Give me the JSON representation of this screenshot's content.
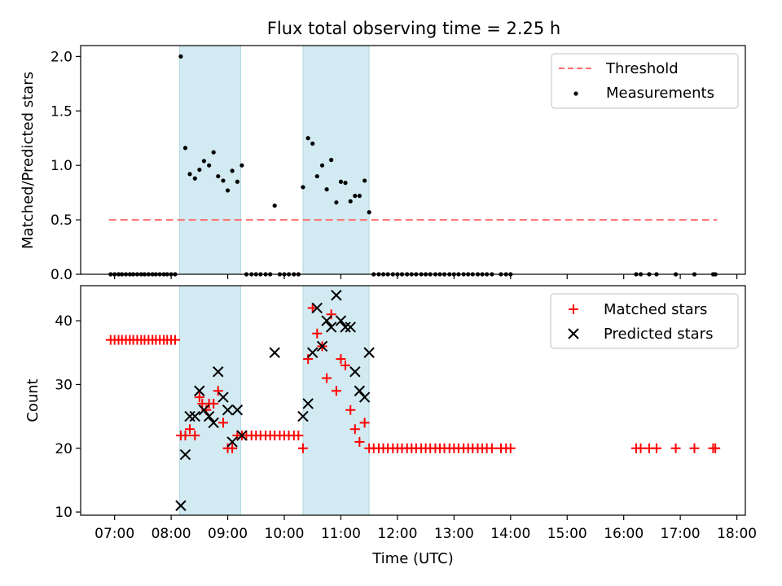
{
  "figure_title": "Flux total observing time = 2.25 h",
  "xlabel": "Time (UTC)",
  "x_ticks": [
    "07:00",
    "08:00",
    "09:00",
    "10:00",
    "11:00",
    "12:00",
    "13:00",
    "14:00",
    "15:00",
    "16:00",
    "17:00",
    "18:00"
  ],
  "colors": {
    "threshold": "#ff6b6b",
    "matched": "#ff0000",
    "predicted": "#000000",
    "span": "#add8e6"
  },
  "chart_data": [
    {
      "type": "scatter",
      "title": "Flux total observing time = 2.25 h",
      "xlabel": "",
      "ylabel": "Matched/Predicted stars",
      "x_unit": "hours UTC",
      "xlim": [
        6.4,
        18.15
      ],
      "ylim": [
        0,
        2.1
      ],
      "y_ticks": [
        "0.0",
        "0.5",
        "1.0",
        "1.5",
        "2.0"
      ],
      "grid": false,
      "legend": {
        "placement": "top-right",
        "entries": [
          "Threshold",
          "Measurements"
        ]
      },
      "observing_windows": [
        [
          8.15,
          9.23
        ],
        [
          10.33,
          11.5
        ]
      ],
      "threshold": {
        "name": "Threshold",
        "y": 0.5,
        "x_range": [
          6.9,
          17.65
        ]
      },
      "series": [
        {
          "name": "Measurements",
          "points": [
            [
              6.93,
              0
            ],
            [
              7.0,
              0
            ],
            [
              7.07,
              0
            ],
            [
              7.13,
              0
            ],
            [
              7.2,
              0
            ],
            [
              7.27,
              0
            ],
            [
              7.33,
              0
            ],
            [
              7.4,
              0
            ],
            [
              7.47,
              0
            ],
            [
              7.53,
              0
            ],
            [
              7.6,
              0
            ],
            [
              7.67,
              0
            ],
            [
              7.73,
              0
            ],
            [
              7.8,
              0
            ],
            [
              7.87,
              0
            ],
            [
              7.93,
              0
            ],
            [
              8.0,
              0
            ],
            [
              8.07,
              0
            ],
            [
              8.17,
              2.0
            ],
            [
              8.25,
              1.16
            ],
            [
              8.33,
              0.92
            ],
            [
              8.42,
              0.88
            ],
            [
              8.5,
              0.96
            ],
            [
              8.58,
              1.04
            ],
            [
              8.67,
              1.0
            ],
            [
              8.75,
              1.12
            ],
            [
              8.83,
              0.9
            ],
            [
              8.92,
              0.86
            ],
            [
              9.0,
              0.77
            ],
            [
              9.08,
              0.95
            ],
            [
              9.17,
              0.85
            ],
            [
              9.25,
              1.0
            ],
            [
              9.33,
              0
            ],
            [
              9.42,
              0
            ],
            [
              9.5,
              0
            ],
            [
              9.58,
              0
            ],
            [
              9.67,
              0
            ],
            [
              9.75,
              0
            ],
            [
              9.83,
              0.63
            ],
            [
              9.92,
              0
            ],
            [
              10.0,
              0
            ],
            [
              10.08,
              0
            ],
            [
              10.17,
              0
            ],
            [
              10.25,
              0
            ],
            [
              10.33,
              0.8
            ],
            [
              10.42,
              1.25
            ],
            [
              10.5,
              1.2
            ],
            [
              10.58,
              0.9
            ],
            [
              10.67,
              1.0
            ],
            [
              10.75,
              0.78
            ],
            [
              10.83,
              1.05
            ],
            [
              10.92,
              0.66
            ],
            [
              11.0,
              0.85
            ],
            [
              11.08,
              0.84
            ],
            [
              11.17,
              0.67
            ],
            [
              11.25,
              0.72
            ],
            [
              11.33,
              0.72
            ],
            [
              11.42,
              0.86
            ],
            [
              11.5,
              0.57
            ],
            [
              11.58,
              0
            ],
            [
              11.67,
              0
            ],
            [
              11.75,
              0
            ],
            [
              11.83,
              0
            ],
            [
              11.92,
              0
            ],
            [
              12.0,
              0
            ],
            [
              12.08,
              0
            ],
            [
              12.17,
              0
            ],
            [
              12.25,
              0
            ],
            [
              12.33,
              0
            ],
            [
              12.42,
              0
            ],
            [
              12.5,
              0
            ],
            [
              12.58,
              0
            ],
            [
              12.67,
              0
            ],
            [
              12.75,
              0
            ],
            [
              12.83,
              0
            ],
            [
              12.92,
              0
            ],
            [
              13.0,
              0
            ],
            [
              13.08,
              0
            ],
            [
              13.17,
              0
            ],
            [
              13.25,
              0
            ],
            [
              13.33,
              0
            ],
            [
              13.42,
              0
            ],
            [
              13.5,
              0
            ],
            [
              13.58,
              0
            ],
            [
              13.67,
              0
            ],
            [
              13.83,
              0
            ],
            [
              13.92,
              0
            ],
            [
              14.0,
              0
            ],
            [
              16.22,
              0
            ],
            [
              16.3,
              0
            ],
            [
              16.45,
              0
            ],
            [
              16.58,
              0
            ],
            [
              16.92,
              0
            ],
            [
              17.25,
              0
            ],
            [
              17.58,
              0
            ],
            [
              17.62,
              0
            ]
          ]
        }
      ]
    },
    {
      "type": "scatter",
      "title": "",
      "xlabel": "Time (UTC)",
      "ylabel": "Count",
      "x_unit": "hours UTC",
      "xlim": [
        6.4,
        18.15
      ],
      "ylim": [
        9.5,
        45.5
      ],
      "y_ticks": [
        "10",
        "20",
        "30",
        "40"
      ],
      "grid": false,
      "legend": {
        "placement": "top-right",
        "entries": [
          "Matched stars",
          "Predicted stars"
        ]
      },
      "observing_windows": [
        [
          8.15,
          9.23
        ],
        [
          10.33,
          11.5
        ]
      ],
      "series": [
        {
          "name": "Matched stars",
          "points": [
            [
              6.93,
              37
            ],
            [
              7.0,
              37
            ],
            [
              7.07,
              37
            ],
            [
              7.13,
              37
            ],
            [
              7.2,
              37
            ],
            [
              7.27,
              37
            ],
            [
              7.33,
              37
            ],
            [
              7.4,
              37
            ],
            [
              7.47,
              37
            ],
            [
              7.53,
              37
            ],
            [
              7.6,
              37
            ],
            [
              7.67,
              37
            ],
            [
              7.73,
              37
            ],
            [
              7.8,
              37
            ],
            [
              7.87,
              37
            ],
            [
              7.93,
              37
            ],
            [
              8.0,
              37
            ],
            [
              8.07,
              37
            ],
            [
              8.17,
              22
            ],
            [
              8.25,
              22
            ],
            [
              8.33,
              23
            ],
            [
              8.42,
              22
            ],
            [
              8.5,
              28
            ],
            [
              8.55,
              27
            ],
            [
              8.62,
              26
            ],
            [
              8.67,
              27
            ],
            [
              8.75,
              27
            ],
            [
              8.83,
              29
            ],
            [
              8.92,
              24
            ],
            [
              9.0,
              20
            ],
            [
              9.08,
              20
            ],
            [
              9.17,
              22
            ],
            [
              9.25,
              22
            ],
            [
              9.33,
              22
            ],
            [
              9.42,
              22
            ],
            [
              9.5,
              22
            ],
            [
              9.58,
              22
            ],
            [
              9.67,
              22
            ],
            [
              9.75,
              22
            ],
            [
              9.83,
              22
            ],
            [
              9.92,
              22
            ],
            [
              10.0,
              22
            ],
            [
              10.08,
              22
            ],
            [
              10.17,
              22
            ],
            [
              10.25,
              22
            ],
            [
              10.33,
              20
            ],
            [
              10.42,
              34
            ],
            [
              10.5,
              42
            ],
            [
              10.58,
              38
            ],
            [
              10.67,
              36
            ],
            [
              10.75,
              31
            ],
            [
              10.83,
              41
            ],
            [
              10.92,
              29
            ],
            [
              11.0,
              34
            ],
            [
              11.08,
              33
            ],
            [
              11.17,
              26
            ],
            [
              11.25,
              23
            ],
            [
              11.33,
              21
            ],
            [
              11.42,
              24
            ],
            [
              11.5,
              20
            ],
            [
              11.58,
              20
            ],
            [
              11.67,
              20
            ],
            [
              11.75,
              20
            ],
            [
              11.83,
              20
            ],
            [
              11.92,
              20
            ],
            [
              12.0,
              20
            ],
            [
              12.08,
              20
            ],
            [
              12.17,
              20
            ],
            [
              12.25,
              20
            ],
            [
              12.33,
              20
            ],
            [
              12.42,
              20
            ],
            [
              12.5,
              20
            ],
            [
              12.58,
              20
            ],
            [
              12.67,
              20
            ],
            [
              12.75,
              20
            ],
            [
              12.83,
              20
            ],
            [
              12.92,
              20
            ],
            [
              13.0,
              20
            ],
            [
              13.08,
              20
            ],
            [
              13.17,
              20
            ],
            [
              13.25,
              20
            ],
            [
              13.33,
              20
            ],
            [
              13.42,
              20
            ],
            [
              13.5,
              20
            ],
            [
              13.58,
              20
            ],
            [
              13.67,
              20
            ],
            [
              13.83,
              20
            ],
            [
              13.92,
              20
            ],
            [
              14.0,
              20
            ],
            [
              16.22,
              20
            ],
            [
              16.3,
              20
            ],
            [
              16.45,
              20
            ],
            [
              16.58,
              20
            ],
            [
              16.92,
              20
            ],
            [
              17.25,
              20
            ],
            [
              17.58,
              20
            ],
            [
              17.62,
              20
            ]
          ]
        },
        {
          "name": "Predicted stars",
          "points": [
            [
              8.17,
              11
            ],
            [
              8.25,
              19
            ],
            [
              8.33,
              25
            ],
            [
              8.42,
              25
            ],
            [
              8.5,
              29
            ],
            [
              8.58,
              26
            ],
            [
              8.67,
              25
            ],
            [
              8.75,
              24
            ],
            [
              8.83,
              32
            ],
            [
              8.92,
              28
            ],
            [
              9.0,
              26
            ],
            [
              9.08,
              21
            ],
            [
              9.17,
              26
            ],
            [
              9.25,
              22
            ],
            [
              9.83,
              35
            ],
            [
              10.33,
              25
            ],
            [
              10.42,
              27
            ],
            [
              10.5,
              35
            ],
            [
              10.58,
              42
            ],
            [
              10.67,
              36
            ],
            [
              10.75,
              40
            ],
            [
              10.83,
              39
            ],
            [
              10.92,
              44
            ],
            [
              11.0,
              40
            ],
            [
              11.08,
              39
            ],
            [
              11.17,
              39
            ],
            [
              11.25,
              32
            ],
            [
              11.33,
              29
            ],
            [
              11.42,
              28
            ],
            [
              11.5,
              35
            ]
          ]
        }
      ]
    }
  ]
}
